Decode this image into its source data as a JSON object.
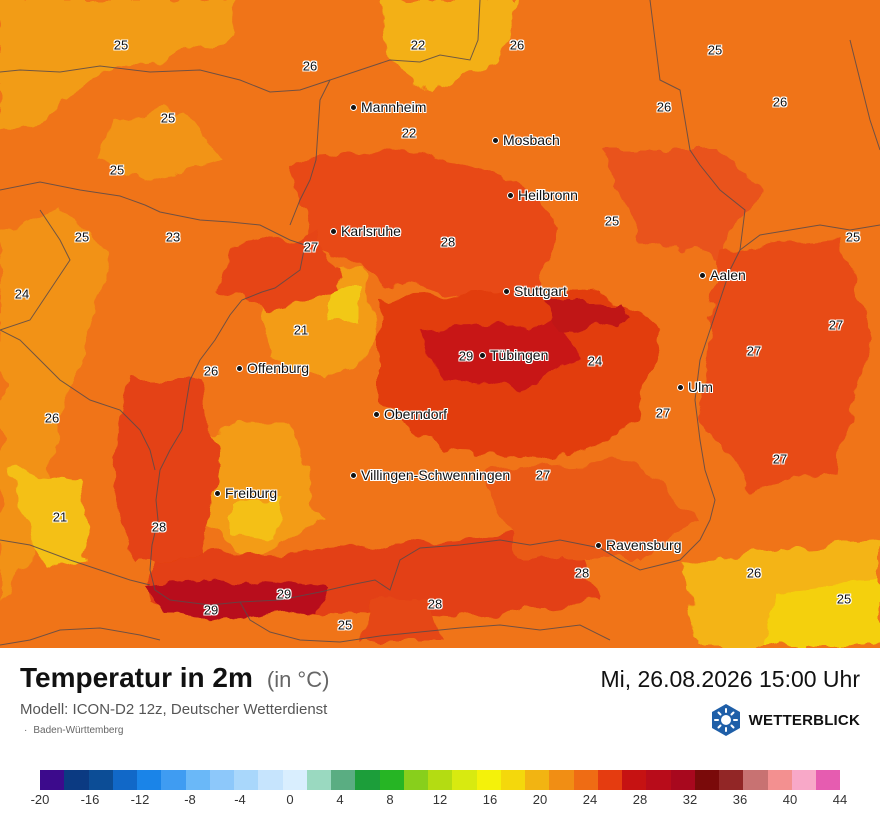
{
  "map": {
    "cities": [
      {
        "name": "Mannheim"
      },
      {
        "name": "Mosbach"
      },
      {
        "name": "Heilbronn"
      },
      {
        "name": "Karlsruhe"
      },
      {
        "name": "Stuttgart"
      },
      {
        "name": "Aalen"
      },
      {
        "name": "Tübingen"
      },
      {
        "name": "Offenburg"
      },
      {
        "name": "Ulm"
      },
      {
        "name": "Oberndorf"
      },
      {
        "name": "Villingen-Schwenningen"
      },
      {
        "name": "Freiburg"
      },
      {
        "name": "Ravensburg"
      }
    ],
    "temperature_labels": [
      "25",
      "22",
      "26",
      "25",
      "26",
      "26",
      "25",
      "22",
      "26",
      "25",
      "25",
      "28",
      "23",
      "25",
      "25",
      "27",
      "24",
      "21",
      "27",
      "29",
      "24",
      "26",
      "27",
      "26",
      "27",
      "28",
      "21",
      "27",
      "28",
      "26",
      "29",
      "29",
      "25",
      "28",
      "25"
    ]
  },
  "header": {
    "title": "Temperatur in 2m",
    "unit": "(in °C)",
    "datetime": "Mi, 26.08.2026 15:00 Uhr",
    "model": "Modell: ICON-D2 12z, Deutscher Wetterdienst",
    "region": "Baden-Württemberg",
    "brand": "WETTERBLICK"
  },
  "legend": {
    "colors": [
      "#3c0a8c",
      "#0b3a82",
      "#0c4d96",
      "#1168c8",
      "#1a84e8",
      "#3f9cf2",
      "#6ab8f8",
      "#8dc8fa",
      "#a9d7fb",
      "#c6e4fd",
      "#d9eefe",
      "#9ad9c0",
      "#5aad82",
      "#1c9e3a",
      "#26b524",
      "#88cf1c",
      "#b4dc12",
      "#d8ea10",
      "#f4f20a",
      "#f4d80c",
      "#f2b412",
      "#f18e14",
      "#ef6c14",
      "#e53c10",
      "#c61212",
      "#b80c1a",
      "#a8081e",
      "#7a0a0a",
      "#922626",
      "#c87272",
      "#f39090",
      "#f8a8c8",
      "#e65cb0"
    ],
    "labels": [
      "-20",
      "-16",
      "-12",
      "-8",
      "-4",
      "0",
      "4",
      "8",
      "12",
      "16",
      "20",
      "24",
      "28",
      "32",
      "36",
      "40",
      "44"
    ]
  }
}
